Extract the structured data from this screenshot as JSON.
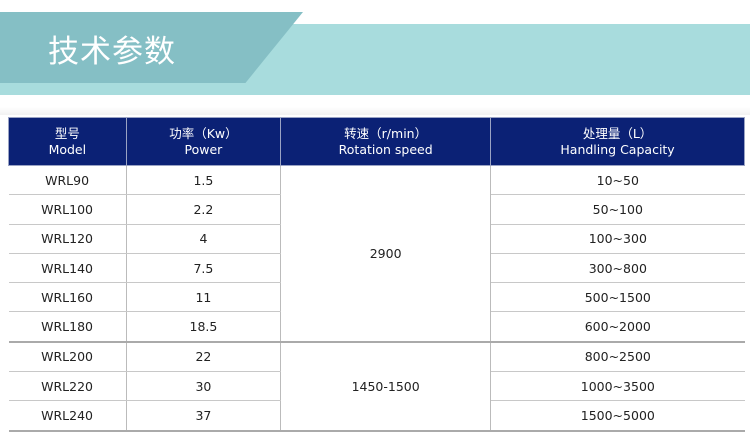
{
  "title": "技术参数",
  "colors": {
    "header_bg": "#0b2175",
    "banner_light": "#a8dcdd",
    "banner_dark": "#85bfc5"
  },
  "headers": [
    {
      "cn": "型号",
      "en": "Model"
    },
    {
      "cn": "功率（Kw）",
      "en": "Power"
    },
    {
      "cn": "转速（r/min）",
      "en": "Rotation speed"
    },
    {
      "cn": "处理量（L）",
      "en": "Handling Capacity"
    }
  ],
  "rows": [
    {
      "model": "WRL90",
      "power": "1.5",
      "capacity": "10~50"
    },
    {
      "model": "WRL100",
      "power": "2.2",
      "capacity": "50~100"
    },
    {
      "model": "WRL120",
      "power": "4",
      "capacity": "100~300"
    },
    {
      "model": "WRL140",
      "power": "7.5",
      "capacity": "300~800"
    },
    {
      "model": "WRL160",
      "power": "11",
      "capacity": "500~1500"
    },
    {
      "model": "WRL180",
      "power": "18.5",
      "capacity": "600~2000"
    },
    {
      "model": "WRL200",
      "power": "22",
      "capacity": "800~2500"
    },
    {
      "model": "WRL220",
      "power": "30",
      "capacity": "1000~3500"
    },
    {
      "model": "WRL240",
      "power": "37",
      "capacity": "1500~5000"
    }
  ],
  "speeds": [
    "2900",
    "1450-1500"
  ]
}
